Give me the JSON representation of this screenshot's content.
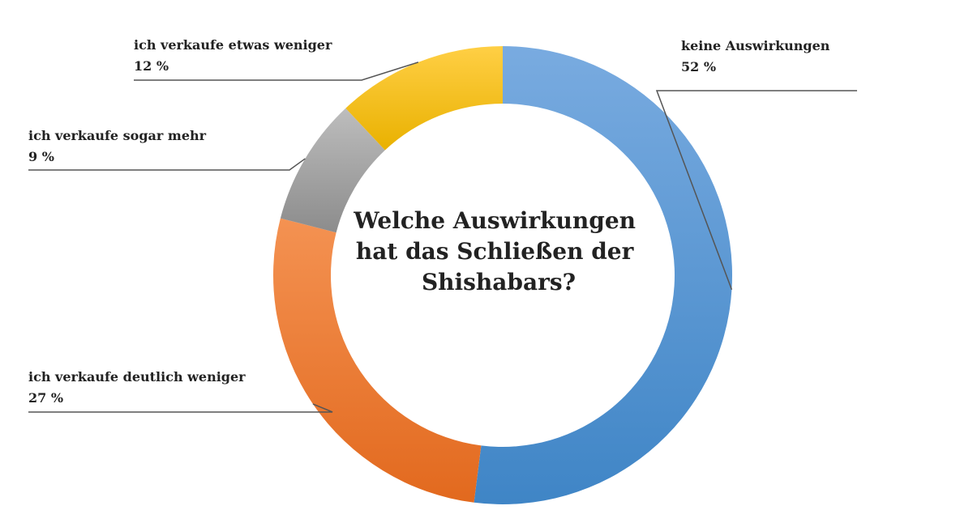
{
  "chart_data": {
    "type": "pie",
    "variant": "donut",
    "title_lines": [
      "Welche Auswirkungen",
      "hat das Schließen der",
      "Shishabars?"
    ],
    "unit": "%",
    "slices": [
      {
        "label": "keine Auswirkungen",
        "value": 52,
        "value_text": "52 %",
        "color_light": "#79abe0",
        "color_dark": "#3f85c6"
      },
      {
        "label": "ich verkaufe deutlich weniger",
        "value": 27,
        "value_text": "27 %",
        "color_light": "#f49252",
        "color_dark": "#e2691e"
      },
      {
        "label": "ich verkaufe sogar mehr",
        "value": 9,
        "value_text": "9 %",
        "color_light": "#bdbdbd",
        "color_dark": "#8c8c8c"
      },
      {
        "label": "ich verkaufe etwas weniger",
        "value": 12,
        "value_text": "12 %",
        "color_light": "#ffcf45",
        "color_dark": "#e9b100"
      }
    ]
  }
}
